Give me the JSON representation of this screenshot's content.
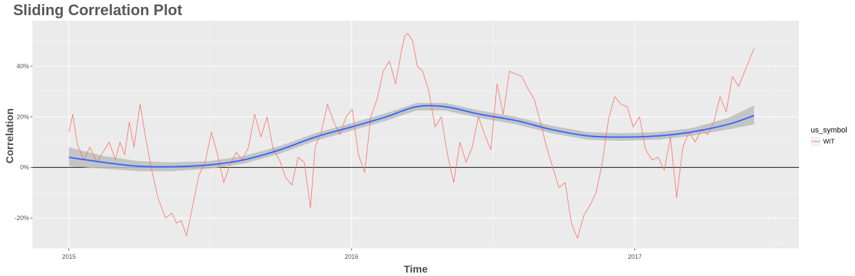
{
  "chart_data": {
    "type": "line",
    "title": "Sliding Correlation Plot",
    "xlabel": "Time",
    "ylabel": "Correlation",
    "x_ticks": [
      "2015",
      "2016",
      "2017"
    ],
    "x_tick_dates": [
      "2015-01-01",
      "2016-01-01",
      "2017-01-01"
    ],
    "xlim": [
      "2014-11-15",
      "2017-08-01"
    ],
    "y_ticks": [
      -0.2,
      0.0,
      0.2,
      0.4
    ],
    "y_tick_labels": [
      "-20%",
      "0%",
      "20%",
      "40%"
    ],
    "ylim": [
      -0.32,
      0.58
    ],
    "grid": true,
    "reference_line_y": 0.0,
    "legend": {
      "title": "us_symbol",
      "position": "right",
      "entries": [
        {
          "label": "WIT",
          "color": "#F8766D"
        }
      ]
    },
    "series": [
      {
        "name": "WIT",
        "color": "#F8766D",
        "x": [
          "2015-01-01",
          "2015-01-06",
          "2015-01-12",
          "2015-01-20",
          "2015-01-28",
          "2015-02-06",
          "2015-02-14",
          "2015-02-22",
          "2015-03-02",
          "2015-03-08",
          "2015-03-14",
          "2015-03-20",
          "2015-03-26",
          "2015-04-03",
          "2015-04-10",
          "2015-04-18",
          "2015-04-26",
          "2015-05-06",
          "2015-05-14",
          "2015-05-20",
          "2015-05-26",
          "2015-06-02",
          "2015-06-10",
          "2015-06-18",
          "2015-06-26",
          "2015-07-04",
          "2015-07-12",
          "2015-07-20",
          "2015-07-28",
          "2015-08-05",
          "2015-08-13",
          "2015-08-21",
          "2015-08-29",
          "2015-09-06",
          "2015-09-14",
          "2015-09-22",
          "2015-09-30",
          "2015-10-08",
          "2015-10-16",
          "2015-10-24",
          "2015-11-01",
          "2015-11-09",
          "2015-11-15",
          "2015-11-23",
          "2015-12-01",
          "2015-12-09",
          "2015-12-17",
          "2015-12-25",
          "2016-01-02",
          "2016-01-10",
          "2016-01-18",
          "2016-01-26",
          "2016-02-03",
          "2016-02-11",
          "2016-02-19",
          "2016-02-27",
          "2016-03-06",
          "2016-03-10",
          "2016-03-14",
          "2016-03-20",
          "2016-03-26",
          "2016-04-02",
          "2016-04-10",
          "2016-04-18",
          "2016-04-26",
          "2016-05-04",
          "2016-05-12",
          "2016-05-20",
          "2016-05-28",
          "2016-06-05",
          "2016-06-13",
          "2016-06-21",
          "2016-06-29",
          "2016-07-07",
          "2016-07-15",
          "2016-07-23",
          "2016-07-31",
          "2016-08-08",
          "2016-08-16",
          "2016-08-24",
          "2016-09-01",
          "2016-09-09",
          "2016-09-17",
          "2016-09-25",
          "2016-10-03",
          "2016-10-11",
          "2016-10-19",
          "2016-10-27",
          "2016-11-04",
          "2016-11-12",
          "2016-11-20",
          "2016-11-28",
          "2016-12-06",
          "2016-12-14",
          "2016-12-22",
          "2016-12-30",
          "2017-01-07",
          "2017-01-15",
          "2017-01-23",
          "2017-01-31",
          "2017-02-08",
          "2017-02-16",
          "2017-02-24",
          "2017-03-04",
          "2017-03-12",
          "2017-03-20",
          "2017-03-28",
          "2017-04-05",
          "2017-04-13",
          "2017-04-21",
          "2017-04-29",
          "2017-05-07",
          "2017-05-15",
          "2017-05-23",
          "2017-05-31",
          "2017-06-04"
        ],
        "values": [
          0.14,
          0.21,
          0.09,
          0.03,
          0.08,
          0.02,
          0.06,
          0.1,
          0.03,
          0.1,
          0.05,
          0.18,
          0.08,
          0.25,
          0.12,
          -0.01,
          -0.12,
          -0.2,
          -0.18,
          -0.22,
          -0.21,
          -0.27,
          -0.15,
          -0.03,
          0.02,
          0.14,
          0.05,
          -0.06,
          0.01,
          0.06,
          0.03,
          0.08,
          0.21,
          0.12,
          0.2,
          0.07,
          0.03,
          -0.04,
          -0.07,
          0.04,
          0.02,
          -0.16,
          0.08,
          0.14,
          0.25,
          0.18,
          0.13,
          0.2,
          0.23,
          0.05,
          -0.02,
          0.2,
          0.27,
          0.38,
          0.42,
          0.33,
          0.47,
          0.52,
          0.53,
          0.5,
          0.4,
          0.38,
          0.3,
          0.16,
          0.2,
          0.05,
          -0.06,
          0.1,
          0.02,
          0.08,
          0.2,
          0.13,
          0.07,
          0.33,
          0.21,
          0.38,
          0.37,
          0.36,
          0.31,
          0.27,
          0.18,
          0.08,
          0.0,
          -0.08,
          -0.06,
          -0.22,
          -0.28,
          -0.19,
          -0.15,
          -0.1,
          0.02,
          0.19,
          0.28,
          0.25,
          0.24,
          0.16,
          0.2,
          0.07,
          0.03,
          0.04,
          -0.01,
          0.12,
          -0.12,
          0.08,
          0.14,
          0.1,
          0.15,
          0.13,
          0.18,
          0.28,
          0.22,
          0.36,
          0.32,
          0.38,
          0.44,
          0.47
        ]
      }
    ],
    "smooth": {
      "color": "#3366FF",
      "band_color": "#bdbdbd",
      "x": [
        "2015-01-01",
        "2015-02-15",
        "2015-04-01",
        "2015-05-15",
        "2015-07-01",
        "2015-08-15",
        "2015-10-01",
        "2015-11-15",
        "2016-01-01",
        "2016-02-15",
        "2016-03-25",
        "2016-05-01",
        "2016-06-15",
        "2016-08-01",
        "2016-09-15",
        "2016-11-01",
        "2016-12-15",
        "2017-02-01",
        "2017-03-15",
        "2017-05-01",
        "2017-06-04"
      ],
      "values": [
        0.04,
        0.02,
        0.005,
        0.003,
        0.01,
        0.03,
        0.07,
        0.12,
        0.16,
        0.2,
        0.24,
        0.24,
        0.21,
        0.185,
        0.15,
        0.125,
        0.12,
        0.125,
        0.14,
        0.17,
        0.205
      ],
      "lower": [
        0.005,
        -0.005,
        -0.015,
        -0.015,
        -0.005,
        0.015,
        0.055,
        0.105,
        0.145,
        0.185,
        0.225,
        0.225,
        0.195,
        0.17,
        0.135,
        0.11,
        0.105,
        0.11,
        0.125,
        0.15,
        0.17
      ],
      "upper": [
        0.08,
        0.045,
        0.025,
        0.02,
        0.025,
        0.045,
        0.085,
        0.135,
        0.175,
        0.215,
        0.255,
        0.255,
        0.225,
        0.2,
        0.165,
        0.14,
        0.135,
        0.14,
        0.155,
        0.195,
        0.245
      ]
    }
  }
}
